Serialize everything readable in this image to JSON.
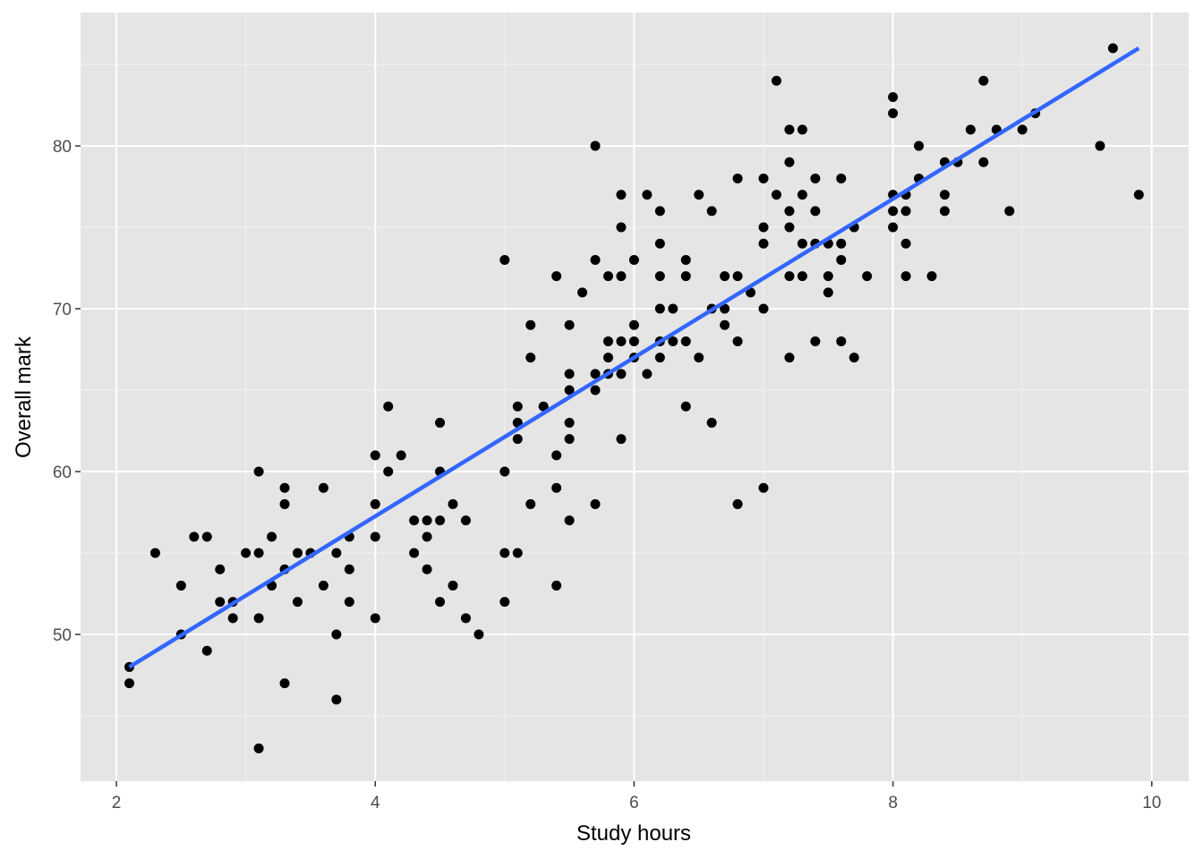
{
  "chart_data": {
    "type": "scatter",
    "x_label": "Study hours",
    "y_label": "Overall mark",
    "xlim": [
      1.723,
      10.285
    ],
    "ylim": [
      40.99,
      88.19
    ],
    "xticks": [
      2,
      4,
      6,
      8,
      10
    ],
    "yticks": [
      50,
      60,
      70,
      80
    ],
    "x_minor_grid": [
      3,
      5,
      7,
      9
    ],
    "y_minor_grid": [
      45,
      55,
      65,
      75,
      85
    ],
    "grid": true,
    "background": "#e5e5e5",
    "series": [
      {
        "color": "#000000",
        "x": [
          2.1,
          2.1,
          2.3,
          2.5,
          2.5,
          2.6,
          2.7,
          2.7,
          2.8,
          2.8,
          2.9,
          2.9,
          3.0,
          3.1,
          3.1,
          3.1,
          3.1,
          3.2,
          3.2,
          3.3,
          3.3,
          3.3,
          3.3,
          3.4,
          3.4,
          3.5,
          3.6,
          3.6,
          3.7,
          3.7,
          3.7,
          3.8,
          3.8,
          3.8,
          4.0,
          4.0,
          4.0,
          4.0,
          4.1,
          4.1,
          4.2,
          4.3,
          4.3,
          4.4,
          4.4,
          4.4,
          4.5,
          4.5,
          4.5,
          4.5,
          4.6,
          4.6,
          4.7,
          4.7,
          4.8,
          5.0,
          5.0,
          5.0,
          5.0,
          5.1,
          5.1,
          5.1,
          5.1,
          5.2,
          5.2,
          5.2,
          5.3,
          5.4,
          5.4,
          5.4,
          5.4,
          5.5,
          5.5,
          5.5,
          5.5,
          5.5,
          5.5,
          5.6,
          5.7,
          5.7,
          5.7,
          5.7,
          5.7,
          5.8,
          5.8,
          5.8,
          5.8,
          5.9,
          5.9,
          5.9,
          5.9,
          5.9,
          5.9,
          6.0,
          6.0,
          6.0,
          6.0,
          6.1,
          6.1,
          6.2,
          6.2,
          6.2,
          6.2,
          6.2,
          6.2,
          6.3,
          6.3,
          6.4,
          6.4,
          6.4,
          6.4,
          6.5,
          6.5,
          6.6,
          6.6,
          6.6,
          6.7,
          6.7,
          6.7,
          6.8,
          6.8,
          6.8,
          6.8,
          6.9,
          7.0,
          7.0,
          7.0,
          7.0,
          7.0,
          7.1,
          7.1,
          7.2,
          7.2,
          7.2,
          7.2,
          7.2,
          7.2,
          7.3,
          7.3,
          7.3,
          7.3,
          7.4,
          7.4,
          7.4,
          7.4,
          7.5,
          7.5,
          7.5,
          7.6,
          7.6,
          7.6,
          7.6,
          7.7,
          7.7,
          7.8,
          8.0,
          8.0,
          8.0,
          8.0,
          8.0,
          8.1,
          8.1,
          8.1,
          8.1,
          8.2,
          8.2,
          8.3,
          8.4,
          8.4,
          8.4,
          8.5,
          8.6,
          8.7,
          8.7,
          8.8,
          8.9,
          9.0,
          9.1,
          9.6,
          9.7,
          9.9
        ],
        "values": [
          48,
          47,
          55,
          53,
          50,
          56,
          56,
          49,
          54,
          52,
          52,
          51,
          55,
          60,
          55,
          51,
          43,
          56,
          53,
          59,
          58,
          54,
          47,
          55,
          52,
          55,
          59,
          53,
          55,
          50,
          46,
          56,
          54,
          52,
          61,
          58,
          56,
          51,
          64,
          60,
          61,
          57,
          55,
          57,
          56,
          54,
          63,
          60,
          57,
          52,
          58,
          53,
          57,
          51,
          50,
          73,
          60,
          55,
          52,
          64,
          63,
          62,
          55,
          69,
          67,
          58,
          64,
          72,
          61,
          59,
          53,
          69,
          66,
          65,
          63,
          62,
          57,
          71,
          80,
          73,
          66,
          65,
          58,
          72,
          68,
          67,
          66,
          77,
          75,
          72,
          68,
          66,
          62,
          73,
          69,
          68,
          67,
          77,
          66,
          76,
          74,
          72,
          70,
          68,
          67,
          70,
          68,
          73,
          72,
          68,
          64,
          77,
          67,
          76,
          70,
          63,
          72,
          70,
          69,
          78,
          72,
          68,
          58,
          71,
          78,
          75,
          74,
          70,
          59,
          84,
          77,
          81,
          79,
          76,
          75,
          72,
          67,
          81,
          77,
          74,
          72,
          78,
          76,
          74,
          68,
          74,
          72,
          71,
          78,
          74,
          73,
          68,
          75,
          67,
          72,
          83,
          82,
          77,
          76,
          75,
          77,
          76,
          74,
          72,
          80,
          78,
          72,
          79,
          77,
          76,
          79,
          81,
          84,
          79,
          81,
          76,
          81,
          82,
          80,
          86,
          77
        ]
      }
    ],
    "fit": {
      "color": "#3366ff",
      "x": [
        2.1,
        9.9
      ],
      "values": [
        48.0,
        86.0
      ]
    }
  }
}
